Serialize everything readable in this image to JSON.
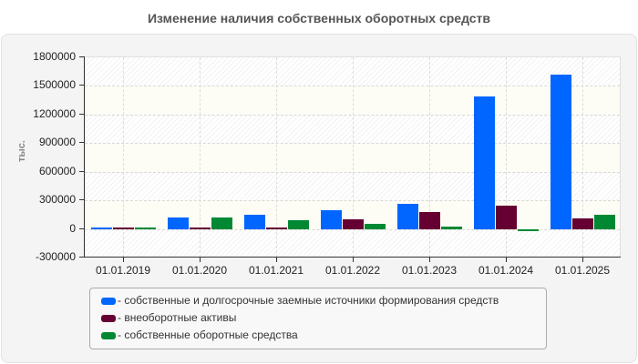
{
  "title": "Изменение наличия собственных оборотных средств",
  "y_unit_label": "тыс.",
  "colors": {
    "blue": "#0066ff",
    "maroon": "#660033",
    "green": "#008833"
  },
  "y_ticks": [
    "1800000",
    "1500000",
    "1200000",
    "900000",
    "600000",
    "300000",
    "0",
    "-300000"
  ],
  "x_labels": [
    "01.01.2019",
    "01.01.2020",
    "01.01.2021",
    "01.01.2022",
    "01.01.2023",
    "01.01.2024",
    "01.01.2025"
  ],
  "legend": [
    {
      "label": "- собственные и долгосрочные заемные источники формирования средств",
      "color": "#0066ff"
    },
    {
      "label": "- внеоборотные активы",
      "color": "#660033"
    },
    {
      "label": "- собственные оборотные средства",
      "color": "#008833"
    }
  ],
  "chart_data": {
    "type": "bar",
    "title": "Изменение наличия собственных оборотных средств",
    "xlabel": "",
    "ylabel": "тыс.",
    "ylim": [
      -300000,
      1800000
    ],
    "grid": true,
    "legend_position": "bottom",
    "categories": [
      "01.01.2019",
      "01.01.2020",
      "01.01.2021",
      "01.01.2022",
      "01.01.2023",
      "01.01.2024",
      "01.01.2025"
    ],
    "series": [
      {
        "name": "собственные и долгосрочные заемные источники формирования средств",
        "color": "#0066ff",
        "values": [
          15000,
          120000,
          145000,
          200000,
          265000,
          1385000,
          1620000
        ]
      },
      {
        "name": "внеоборотные активы",
        "color": "#660033",
        "values": [
          15000,
          15000,
          15000,
          100000,
          180000,
          245000,
          110000
        ]
      },
      {
        "name": "собственные оборотные средства",
        "color": "#008833",
        "values": [
          15000,
          120000,
          90000,
          50000,
          25000,
          -25000,
          148000
        ]
      }
    ]
  }
}
